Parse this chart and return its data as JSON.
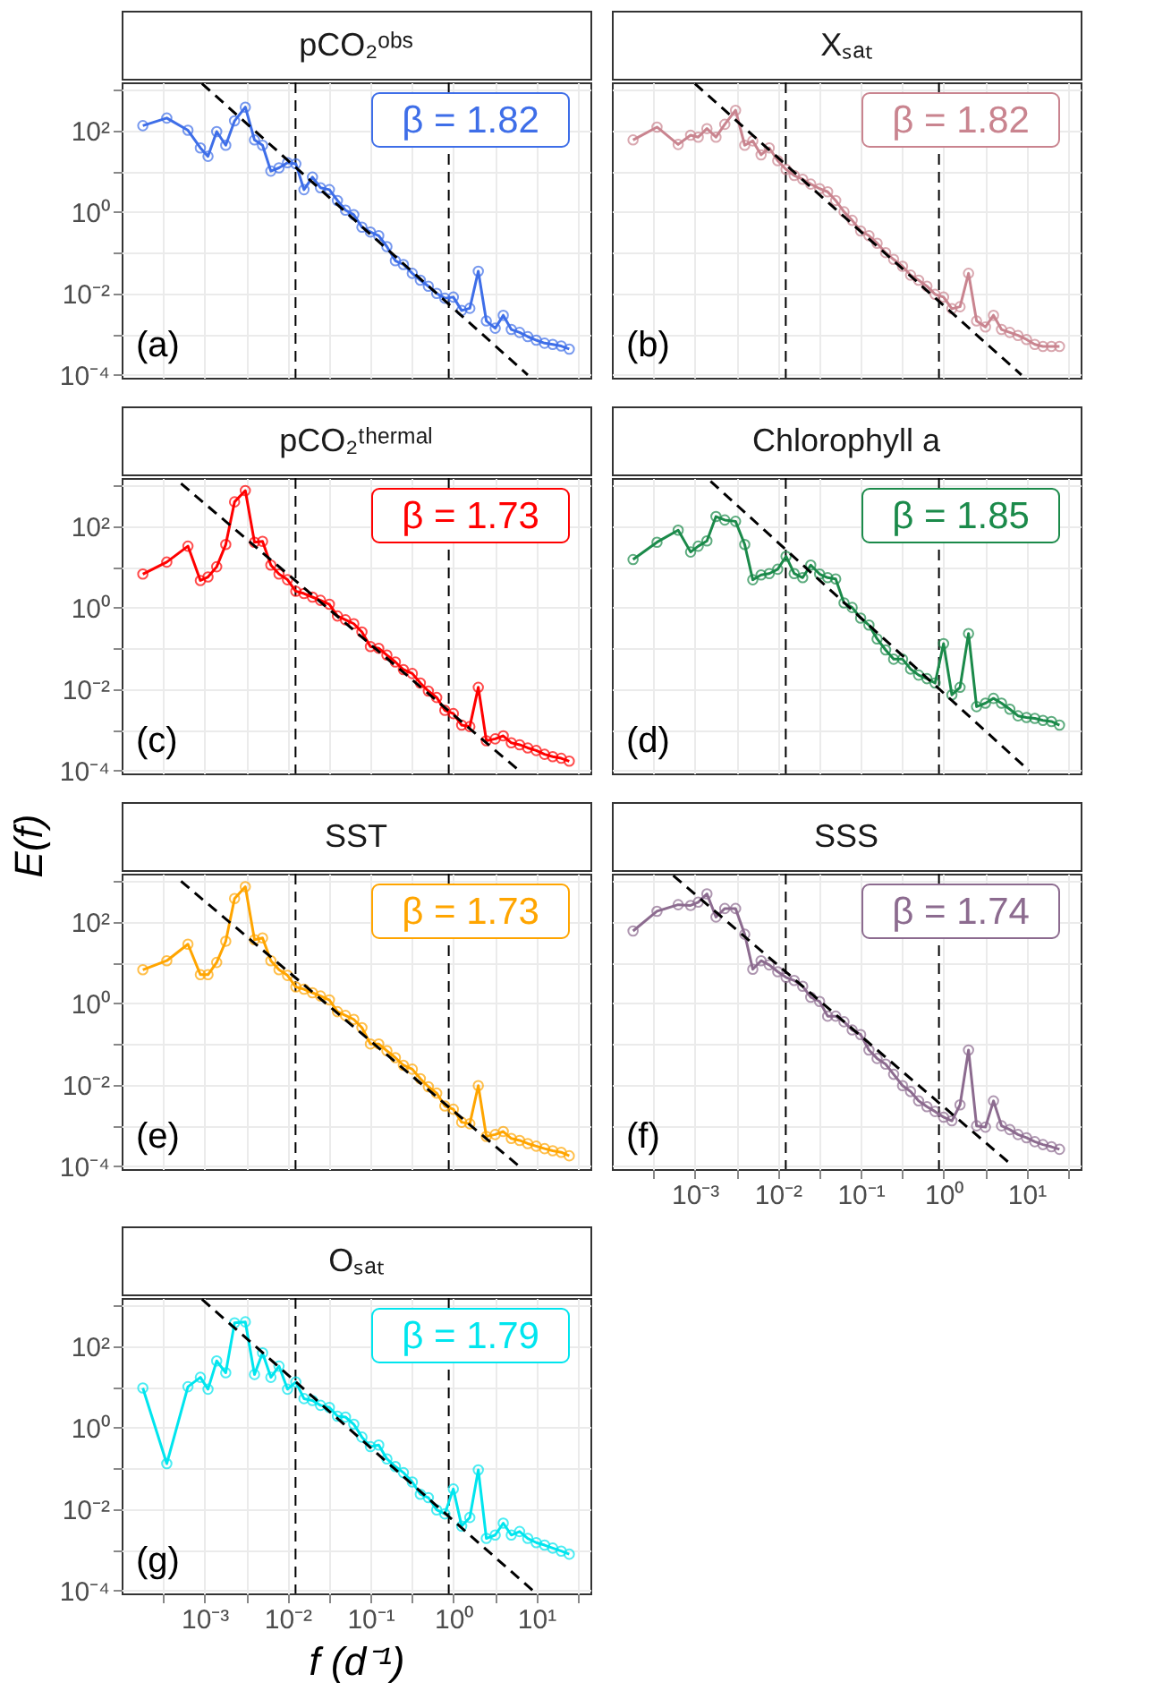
{
  "chart_data": [
    {
      "type": "line",
      "title": "pCO₂ᵒᵇˢ",
      "log": "xy",
      "grid": true,
      "marker": "circle",
      "tick_labels": "y",
      "xlim": [
        0.0001,
        45
      ],
      "ylim": [
        8.5e-05,
        1500
      ],
      "xticks": [
        {
          "value": 0.000316,
          "label": null
        },
        {
          "value": 0.001,
          "label": null
        },
        {
          "value": 0.00316,
          "label": null
        },
        {
          "value": 0.01,
          "label": null
        },
        {
          "value": 0.0316,
          "label": null
        },
        {
          "value": 0.1,
          "label": null
        },
        {
          "value": 0.316,
          "label": null
        },
        {
          "value": 1,
          "label": null
        },
        {
          "value": 3.16,
          "label": null
        },
        {
          "value": 10,
          "label": null
        },
        {
          "value": 31.6,
          "label": null
        }
      ],
      "yticks": [
        {
          "value": 0.0001,
          "label": "10⁻⁴"
        },
        {
          "value": 0.001,
          "label": null
        },
        {
          "value": 0.01,
          "label": "10⁻²"
        },
        {
          "value": 0.1,
          "label": null
        },
        {
          "value": 1,
          "label": "10⁰"
        },
        {
          "value": 10,
          "label": null
        },
        {
          "value": 100,
          "label": "10²"
        },
        {
          "value": 1000,
          "label": null
        }
      ],
      "x": [
        0.00018,
        0.00035,
        0.00063,
        0.00089,
        0.0011,
        0.0014,
        0.0018,
        0.0023,
        0.0031,
        0.004,
        0.005,
        0.0063,
        0.0079,
        0.01,
        0.0126,
        0.0158,
        0.02,
        0.025,
        0.032,
        0.04,
        0.05,
        0.063,
        0.079,
        0.1,
        0.126,
        0.158,
        0.2,
        0.25,
        0.32,
        0.4,
        0.5,
        0.63,
        0.79,
        1.0,
        1.26,
        1.58,
        2.0,
        2.5,
        3.2,
        4.0,
        5.0,
        6.3,
        7.9,
        10,
        12.6,
        15.8,
        20,
        25
      ],
      "series": [
        {
          "color": "#3e6ee8",
          "values": [
            130,
            200,
            100,
            37,
            23,
            93,
            43,
            170,
            370,
            58,
            43,
            10,
            12,
            16,
            15,
            3.5,
            7.1,
            3.9,
            3.5,
            1.9,
            1.1,
            0.85,
            0.42,
            0.32,
            0.26,
            0.14,
            0.063,
            0.051,
            0.031,
            0.021,
            0.015,
            0.01,
            0.0076,
            0.0081,
            0.0038,
            0.0043,
            0.035,
            0.0021,
            0.0014,
            0.0029,
            0.0013,
            0.0011,
            0.00087,
            0.00071,
            0.0006,
            0.00056,
            0.00051,
            0.00043
          ]
        },
        {
          "type": "line",
          "color": "#000000",
          "line_style": "dashed",
          "marker": "none",
          "x": [
            0.00093,
            7.9
          ],
          "values": [
            1400,
            0.0001
          ]
        }
      ],
      "ref_lines": [
        {
          "axis": "x",
          "value": 0.0125,
          "color": "#000000",
          "line_style": "dashed"
        },
        {
          "axis": "x",
          "value": 0.88,
          "color": "#000000",
          "line_style": "dashed"
        }
      ],
      "annotations": [
        "β =  1.82",
        "(a)"
      ]
    },
    {
      "type": "line",
      "title": "Xₛₐₜ",
      "log": "xy",
      "grid": true,
      "marker": "circle",
      "tick_labels": false,
      "xlim": [
        0.0001,
        45
      ],
      "ylim": [
        8.5e-05,
        1500
      ],
      "xticks": [
        {
          "value": 0.000316,
          "label": null
        },
        {
          "value": 0.001,
          "label": null
        },
        {
          "value": 0.00316,
          "label": null
        },
        {
          "value": 0.01,
          "label": null
        },
        {
          "value": 0.0316,
          "label": null
        },
        {
          "value": 0.1,
          "label": null
        },
        {
          "value": 0.316,
          "label": null
        },
        {
          "value": 1,
          "label": null
        },
        {
          "value": 3.16,
          "label": null
        },
        {
          "value": 10,
          "label": null
        },
        {
          "value": 31.6,
          "label": null
        }
      ],
      "yticks": [
        {
          "value": 0.0001,
          "label": null
        },
        {
          "value": 0.001,
          "label": null
        },
        {
          "value": 0.01,
          "label": null
        },
        {
          "value": 0.1,
          "label": null
        },
        {
          "value": 1,
          "label": null
        },
        {
          "value": 10,
          "label": null
        },
        {
          "value": 100,
          "label": null
        },
        {
          "value": 1000,
          "label": null
        }
      ],
      "x": [
        0.00018,
        0.00035,
        0.00063,
        0.00089,
        0.0011,
        0.0014,
        0.0018,
        0.0023,
        0.0031,
        0.004,
        0.005,
        0.0063,
        0.0079,
        0.01,
        0.0126,
        0.0158,
        0.02,
        0.025,
        0.032,
        0.04,
        0.05,
        0.063,
        0.079,
        0.1,
        0.126,
        0.158,
        0.2,
        0.25,
        0.32,
        0.4,
        0.5,
        0.63,
        0.79,
        1.0,
        1.26,
        1.58,
        2.0,
        2.5,
        3.2,
        4.0,
        5.0,
        6.3,
        7.9,
        10,
        12.6,
        15.8,
        20,
        25
      ],
      "series": [
        {
          "color": "#c9848f",
          "values": [
            58,
            120,
            45,
            76,
            68,
            110,
            68,
            140,
            310,
            43,
            55,
            25,
            37,
            18,
            11,
            7.8,
            6.3,
            4.8,
            3.7,
            3.1,
            1.9,
            1.0,
            0.62,
            0.34,
            0.26,
            0.17,
            0.1,
            0.068,
            0.046,
            0.028,
            0.021,
            0.015,
            0.0095,
            0.0081,
            0.0042,
            0.0047,
            0.031,
            0.0021,
            0.0015,
            0.0029,
            0.0013,
            0.0011,
            0.00093,
            0.00074,
            0.00056,
            0.0005,
            0.0005,
            0.0005
          ]
        },
        {
          "type": "line",
          "color": "#000000",
          "line_style": "dashed",
          "marker": "none",
          "x": [
            0.001,
            8.7
          ],
          "values": [
            1400,
            0.0001
          ]
        }
      ],
      "ref_lines": [
        {
          "axis": "x",
          "value": 0.0125,
          "color": "#000000",
          "line_style": "dashed"
        },
        {
          "axis": "x",
          "value": 0.88,
          "color": "#000000",
          "line_style": "dashed"
        }
      ],
      "annotations": [
        "β =  1.82",
        "(b)"
      ]
    },
    {
      "type": "line",
      "title": "pCO₂ᵗʰᵉʳᵐᵃˡ",
      "log": "xy",
      "grid": true,
      "marker": "circle",
      "tick_labels": "y",
      "xlim": [
        0.0001,
        45
      ],
      "ylim": [
        8.5e-05,
        1500
      ],
      "xticks": [
        {
          "value": 0.000316,
          "label": null
        },
        {
          "value": 0.001,
          "label": null
        },
        {
          "value": 0.00316,
          "label": null
        },
        {
          "value": 0.01,
          "label": null
        },
        {
          "value": 0.0316,
          "label": null
        },
        {
          "value": 0.1,
          "label": null
        },
        {
          "value": 0.316,
          "label": null
        },
        {
          "value": 1,
          "label": null
        },
        {
          "value": 3.16,
          "label": null
        },
        {
          "value": 10,
          "label": null
        },
        {
          "value": 31.6,
          "label": null
        }
      ],
      "yticks": [
        {
          "value": 0.0001,
          "label": "10⁻⁴"
        },
        {
          "value": 0.001,
          "label": null
        },
        {
          "value": 0.01,
          "label": "10⁻²"
        },
        {
          "value": 0.1,
          "label": null
        },
        {
          "value": 1,
          "label": "10⁰"
        },
        {
          "value": 10,
          "label": null
        },
        {
          "value": 100,
          "label": "10²"
        },
        {
          "value": 1000,
          "label": null
        }
      ],
      "x": [
        0.00018,
        0.00035,
        0.00063,
        0.00089,
        0.0011,
        0.0014,
        0.0018,
        0.0023,
        0.0031,
        0.004,
        0.005,
        0.0063,
        0.0079,
        0.01,
        0.0126,
        0.0158,
        0.02,
        0.025,
        0.032,
        0.04,
        0.05,
        0.063,
        0.079,
        0.1,
        0.126,
        0.158,
        0.2,
        0.25,
        0.32,
        0.4,
        0.5,
        0.63,
        0.79,
        1.0,
        1.26,
        1.58,
        2.0,
        2.5,
        3.2,
        4.0,
        5.0,
        6.3,
        7.9,
        10,
        12.6,
        15.8,
        20,
        25
      ],
      "series": [
        {
          "color": "#ff0000",
          "values": [
            6.6,
            13,
            32,
            4.6,
            5.6,
            10,
            35,
            390,
            740,
            40,
            42,
            11,
            6.6,
            4.8,
            2.5,
            2.2,
            1.8,
            1.5,
            1.2,
            0.62,
            0.5,
            0.4,
            0.25,
            0.11,
            0.1,
            0.068,
            0.046,
            0.03,
            0.024,
            0.014,
            0.0089,
            0.0062,
            0.003,
            0.0025,
            0.0013,
            0.0012,
            0.011,
            0.00054,
            0.0006,
            0.00071,
            0.00048,
            0.00043,
            0.00036,
            0.00031,
            0.00025,
            0.00022,
            0.0002,
            0.00017
          ]
        },
        {
          "type": "line",
          "color": "#000000",
          "line_style": "dashed",
          "marker": "none",
          "x": [
            0.00052,
            6.2
          ],
          "values": [
            1100,
            0.0001
          ]
        }
      ],
      "ref_lines": [
        {
          "axis": "x",
          "value": 0.0125,
          "color": "#000000",
          "line_style": "dashed"
        },
        {
          "axis": "x",
          "value": 0.88,
          "color": "#000000",
          "line_style": "dashed"
        }
      ],
      "annotations": [
        "β =  1.73",
        "(c)"
      ]
    },
    {
      "type": "line",
      "title": "Chlorophyll a",
      "log": "xy",
      "grid": true,
      "marker": "circle",
      "tick_labels": false,
      "xlim": [
        0.0001,
        45
      ],
      "ylim": [
        8.5e-05,
        1500
      ],
      "xticks": [
        {
          "value": 0.000316,
          "label": null
        },
        {
          "value": 0.001,
          "label": null
        },
        {
          "value": 0.00316,
          "label": null
        },
        {
          "value": 0.01,
          "label": null
        },
        {
          "value": 0.0316,
          "label": null
        },
        {
          "value": 0.1,
          "label": null
        },
        {
          "value": 0.316,
          "label": null
        },
        {
          "value": 1,
          "label": null
        },
        {
          "value": 3.16,
          "label": null
        },
        {
          "value": 10,
          "label": null
        },
        {
          "value": 31.6,
          "label": null
        }
      ],
      "yticks": [
        {
          "value": 0.0001,
          "label": null
        },
        {
          "value": 0.001,
          "label": null
        },
        {
          "value": 0.01,
          "label": null
        },
        {
          "value": 0.1,
          "label": null
        },
        {
          "value": 1,
          "label": null
        },
        {
          "value": 10,
          "label": null
        },
        {
          "value": 100,
          "label": null
        },
        {
          "value": 1000,
          "label": null
        }
      ],
      "x": [
        0.00018,
        0.00035,
        0.00063,
        0.00089,
        0.0011,
        0.0014,
        0.0018,
        0.0023,
        0.0031,
        0.004,
        0.005,
        0.0063,
        0.0079,
        0.01,
        0.0126,
        0.0158,
        0.02,
        0.025,
        0.032,
        0.04,
        0.05,
        0.063,
        0.079,
        0.1,
        0.126,
        0.158,
        0.2,
        0.25,
        0.32,
        0.4,
        0.5,
        0.63,
        0.79,
        1.0,
        1.26,
        1.58,
        2.0,
        2.5,
        3.2,
        4.0,
        5.0,
        6.3,
        7.9,
        10,
        12.6,
        15.8,
        20,
        25
      ],
      "series": [
        {
          "color": "#1b8a4a",
          "values": [
            15,
            40,
            79,
            23,
            32,
            43,
            170,
            140,
            130,
            35,
            4.8,
            6.3,
            6.8,
            8.7,
            18,
            6.8,
            5.4,
            11,
            6.6,
            5.4,
            5.0,
            1.3,
            1.0,
            0.55,
            0.37,
            0.17,
            0.091,
            0.054,
            0.054,
            0.031,
            0.022,
            0.018,
            0.014,
            0.13,
            0.0072,
            0.011,
            0.23,
            0.0037,
            0.0045,
            0.0059,
            0.0045,
            0.0032,
            0.0022,
            0.002,
            0.0019,
            0.0017,
            0.0016,
            0.0013
          ]
        },
        {
          "type": "line",
          "color": "#000000",
          "line_style": "dashed",
          "marker": "none",
          "x": [
            0.00155,
            10.7
          ],
          "values": [
            1250,
            0.0001
          ]
        }
      ],
      "ref_lines": [
        {
          "axis": "x",
          "value": 0.0125,
          "color": "#000000",
          "line_style": "dashed"
        },
        {
          "axis": "x",
          "value": 0.88,
          "color": "#000000",
          "line_style": "dashed"
        }
      ],
      "annotations": [
        "β =  1.85",
        "(d)"
      ]
    },
    {
      "type": "line",
      "title": "SST",
      "ylabel": "E(f)",
      "log": "xy",
      "grid": true,
      "marker": "circle",
      "tick_labels": "y",
      "xlim": [
        0.0001,
        45
      ],
      "ylim": [
        8.5e-05,
        1500
      ],
      "xticks": [
        {
          "value": 0.000316,
          "label": null
        },
        {
          "value": 0.001,
          "label": null
        },
        {
          "value": 0.00316,
          "label": null
        },
        {
          "value": 0.01,
          "label": null
        },
        {
          "value": 0.0316,
          "label": null
        },
        {
          "value": 0.1,
          "label": null
        },
        {
          "value": 0.316,
          "label": null
        },
        {
          "value": 1,
          "label": null
        },
        {
          "value": 3.16,
          "label": null
        },
        {
          "value": 10,
          "label": null
        },
        {
          "value": 31.6,
          "label": null
        }
      ],
      "yticks": [
        {
          "value": 0.0001,
          "label": "10⁻⁴"
        },
        {
          "value": 0.001,
          "label": null
        },
        {
          "value": 0.01,
          "label": "10⁻²"
        },
        {
          "value": 0.1,
          "label": null
        },
        {
          "value": 1,
          "label": "10⁰"
        },
        {
          "value": 10,
          "label": null
        },
        {
          "value": 100,
          "label": "10²"
        },
        {
          "value": 1000,
          "label": null
        }
      ],
      "x": [
        0.00018,
        0.00035,
        0.00063,
        0.00089,
        0.0011,
        0.0014,
        0.0018,
        0.0023,
        0.0031,
        0.004,
        0.005,
        0.0063,
        0.0079,
        0.01,
        0.0126,
        0.0158,
        0.02,
        0.025,
        0.032,
        0.04,
        0.05,
        0.063,
        0.079,
        0.1,
        0.126,
        0.158,
        0.2,
        0.25,
        0.32,
        0.4,
        0.5,
        0.63,
        0.79,
        1.0,
        1.26,
        1.58,
        2.0,
        2.5,
        3.2,
        4.0,
        5.0,
        6.3,
        7.9,
        10,
        12.6,
        15.8,
        20,
        25
      ],
      "series": [
        {
          "color": "#ffa500",
          "values": [
            6.6,
            11,
            28,
            5.0,
            5.0,
            10,
            33,
            370,
            720,
            36,
            40,
            11,
            6.6,
            4.8,
            2.5,
            2.2,
            1.8,
            1.5,
            1.2,
            0.62,
            0.5,
            0.4,
            0.25,
            0.1,
            0.1,
            0.068,
            0.046,
            0.03,
            0.024,
            0.014,
            0.0089,
            0.0062,
            0.003,
            0.0025,
            0.0012,
            0.0011,
            0.0095,
            0.00054,
            0.0006,
            0.00071,
            0.00048,
            0.00043,
            0.00036,
            0.00031,
            0.00027,
            0.00024,
            0.00022,
            0.00018
          ]
        },
        {
          "type": "line",
          "color": "#000000",
          "line_style": "dashed",
          "marker": "none",
          "x": [
            0.00052,
            6.2
          ],
          "values": [
            980,
            0.0001
          ]
        }
      ],
      "ref_lines": [
        {
          "axis": "x",
          "value": 0.0125,
          "color": "#000000",
          "line_style": "dashed"
        },
        {
          "axis": "x",
          "value": 0.88,
          "color": "#000000",
          "line_style": "dashed"
        }
      ],
      "annotations": [
        "β =  1.73",
        "(e)"
      ]
    },
    {
      "type": "line",
      "title": "SSS",
      "log": "xy",
      "grid": true,
      "marker": "circle",
      "tick_labels": "x",
      "xlim": [
        0.0001,
        45
      ],
      "ylim": [
        8.5e-05,
        1500
      ],
      "xticks": [
        {
          "value": 0.000316,
          "label": null
        },
        {
          "value": 0.001,
          "label": "10⁻³"
        },
        {
          "value": 0.00316,
          "label": null
        },
        {
          "value": 0.01,
          "label": "10⁻²"
        },
        {
          "value": 0.0316,
          "label": null
        },
        {
          "value": 0.1,
          "label": "10⁻¹"
        },
        {
          "value": 0.316,
          "label": null
        },
        {
          "value": 1,
          "label": "10⁰"
        },
        {
          "value": 3.16,
          "label": null
        },
        {
          "value": 10,
          "label": "10¹"
        },
        {
          "value": 31.6,
          "label": null
        }
      ],
      "yticks": [
        {
          "value": 0.0001,
          "label": null
        },
        {
          "value": 0.001,
          "label": null
        },
        {
          "value": 0.01,
          "label": null
        },
        {
          "value": 0.1,
          "label": null
        },
        {
          "value": 1,
          "label": null
        },
        {
          "value": 10,
          "label": null
        },
        {
          "value": 100,
          "label": null
        },
        {
          "value": 1000,
          "label": null
        }
      ],
      "x": [
        0.00018,
        0.00035,
        0.00063,
        0.00089,
        0.0011,
        0.0014,
        0.0018,
        0.0023,
        0.0031,
        0.004,
        0.005,
        0.0063,
        0.0079,
        0.01,
        0.0126,
        0.0158,
        0.02,
        0.025,
        0.032,
        0.04,
        0.05,
        0.063,
        0.079,
        0.1,
        0.126,
        0.158,
        0.2,
        0.25,
        0.32,
        0.4,
        0.5,
        0.63,
        0.79,
        1.0,
        1.26,
        1.58,
        2.0,
        2.5,
        3.2,
        4.0,
        5.0,
        6.3,
        7.9,
        10,
        12.6,
        15.8,
        20,
        25
      ],
      "series": [
        {
          "color": "#8c6b8f",
          "values": [
            59,
            180,
            260,
            250,
            300,
            480,
            130,
            210,
            210,
            49,
            6.8,
            11,
            8.7,
            5.9,
            4.3,
            3.6,
            2.6,
            1.4,
            1.1,
            0.48,
            0.48,
            0.35,
            0.22,
            0.17,
            0.071,
            0.044,
            0.032,
            0.018,
            0.0095,
            0.0068,
            0.004,
            0.0029,
            0.0022,
            0.0016,
            0.0013,
            0.0032,
            0.071,
            0.00098,
            0.00091,
            0.004,
            0.00098,
            0.00079,
            0.0006,
            0.0005,
            0.0004,
            0.00034,
            0.0003,
            0.00026
          ]
        },
        {
          "type": "line",
          "color": "#000000",
          "line_style": "dashed",
          "marker": "none",
          "x": [
            0.00055,
            6.9
          ],
          "values": [
            1350,
            0.0001
          ]
        }
      ],
      "ref_lines": [
        {
          "axis": "x",
          "value": 0.0125,
          "color": "#000000",
          "line_style": "dashed"
        },
        {
          "axis": "x",
          "value": 0.88,
          "color": "#000000",
          "line_style": "dashed"
        }
      ],
      "annotations": [
        "β =  1.74",
        "(f)"
      ]
    },
    {
      "type": "line",
      "title": "Oₛₐₜ",
      "xlabel": "f (d⁻¹)",
      "log": "xy",
      "grid": true,
      "marker": "circle",
      "xlim": [
        0.0001,
        45
      ],
      "ylim": [
        8.5e-05,
        1500
      ],
      "xticks": [
        {
          "value": 0.000316,
          "label": null
        },
        {
          "value": 0.001,
          "label": "10⁻³"
        },
        {
          "value": 0.00316,
          "label": null
        },
        {
          "value": 0.01,
          "label": "10⁻²"
        },
        {
          "value": 0.0316,
          "label": null
        },
        {
          "value": 0.1,
          "label": "10⁻¹"
        },
        {
          "value": 0.316,
          "label": null
        },
        {
          "value": 1,
          "label": "10⁰"
        },
        {
          "value": 3.16,
          "label": null
        },
        {
          "value": 10,
          "label": "10¹"
        },
        {
          "value": 31.6,
          "label": null
        }
      ],
      "yticks": [
        {
          "value": 0.0001,
          "label": "10⁻⁴"
        },
        {
          "value": 0.001,
          "label": null
        },
        {
          "value": 0.01,
          "label": "10⁻²"
        },
        {
          "value": 0.1,
          "label": null
        },
        {
          "value": 1,
          "label": "10⁰"
        },
        {
          "value": 10,
          "label": null
        },
        {
          "value": 100,
          "label": "10²"
        },
        {
          "value": 1000,
          "label": null
        }
      ],
      "x": [
        0.00018,
        0.00035,
        0.00063,
        0.00089,
        0.0011,
        0.0014,
        0.0018,
        0.0023,
        0.0031,
        0.004,
        0.005,
        0.0063,
        0.0079,
        0.01,
        0.0126,
        0.0158,
        0.02,
        0.025,
        0.032,
        0.04,
        0.05,
        0.063,
        0.079,
        0.1,
        0.126,
        0.158,
        0.2,
        0.25,
        0.32,
        0.4,
        0.5,
        0.63,
        0.79,
        1.0,
        1.26,
        1.58,
        2.0,
        2.5,
        3.2,
        4.0,
        5.0,
        6.3,
        7.9,
        10,
        12.6,
        15.8,
        20,
        25
      ],
      "series": [
        {
          "color": "#00e5ee",
          "values": [
            9.3,
            0.13,
            10,
            17,
            8.7,
            43,
            22,
            370,
            390,
            20,
            68,
            17,
            32,
            8.7,
            13,
            5.1,
            4.6,
            3.5,
            3.1,
            1.9,
            1.8,
            1.2,
            0.58,
            0.34,
            0.37,
            0.17,
            0.11,
            0.078,
            0.046,
            0.023,
            0.019,
            0.0095,
            0.0076,
            0.031,
            0.0038,
            0.0062,
            0.091,
            0.0019,
            0.0023,
            0.0045,
            0.0023,
            0.0028,
            0.0019,
            0.0015,
            0.0013,
            0.0011,
            0.00093,
            0.00078
          ]
        },
        {
          "type": "line",
          "color": "#000000",
          "line_style": "dashed",
          "marker": "none",
          "x": [
            0.00093,
            9.1
          ],
          "values": [
            1400,
            0.0001
          ]
        }
      ],
      "ref_lines": [
        {
          "axis": "x",
          "value": 0.0125,
          "color": "#000000",
          "line_style": "dashed"
        },
        {
          "axis": "x",
          "value": 0.88,
          "color": "#000000",
          "line_style": "dashed"
        }
      ],
      "annotations": [
        "β =  1.79",
        "(g)"
      ]
    }
  ]
}
